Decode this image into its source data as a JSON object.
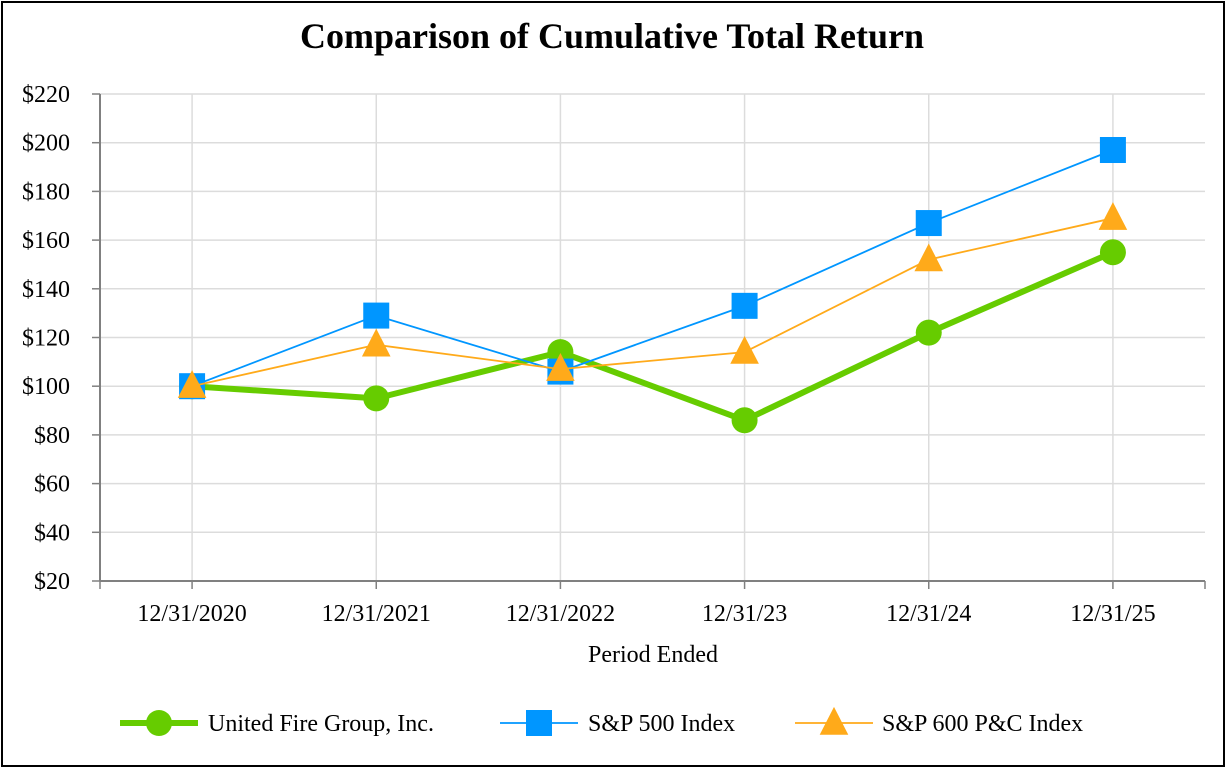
{
  "chart_data": {
    "type": "line",
    "title": "Comparison of Cumulative Total Return",
    "xlabel": "Period Ended",
    "ylabel": "",
    "categories": [
      "12/31/2020",
      "12/31/2021",
      "12/31/2022",
      "12/31/23",
      "12/31/24",
      "12/31/25"
    ],
    "ylim": [
      20,
      220
    ],
    "yticks": [
      20,
      40,
      60,
      80,
      100,
      120,
      140,
      160,
      180,
      200,
      220
    ],
    "ytick_labels": [
      "$20",
      "$40",
      "$60",
      "$80",
      "$100",
      "$120",
      "$140",
      "$160",
      "$180",
      "$200",
      "$220"
    ],
    "grid": true,
    "legend_position": "bottom",
    "series": [
      {
        "name": "United Fire Group, Inc.",
        "values": [
          100,
          95,
          114,
          86,
          122,
          155
        ],
        "color": "#66cc00",
        "marker": "circle",
        "line_width": "thick"
      },
      {
        "name": "S&P 500 Index",
        "values": [
          100,
          129,
          106,
          133,
          167,
          197
        ],
        "color": "#0096ff",
        "marker": "square",
        "line_width": "thin"
      },
      {
        "name": "S&P 600 P&C Index",
        "values": [
          100,
          117,
          107,
          114,
          152,
          169
        ],
        "color": "#ffaa1a",
        "marker": "triangle",
        "line_width": "thin"
      }
    ]
  }
}
